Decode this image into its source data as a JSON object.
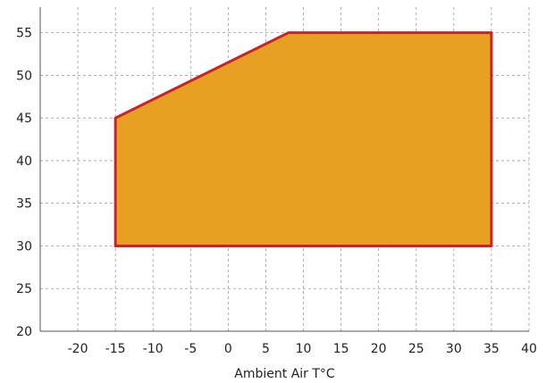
{
  "chart_data": {
    "type": "area",
    "title": "",
    "xlabel": "Ambient Air T°C",
    "ylabel": "",
    "xlim": [
      -25,
      40
    ],
    "ylim": [
      20,
      58
    ],
    "x_ticks": [
      -20,
      -15,
      -10,
      -5,
      0,
      5,
      10,
      15,
      20,
      25,
      30,
      35,
      40
    ],
    "y_ticks": [
      20,
      25,
      30,
      35,
      40,
      45,
      50,
      55
    ],
    "grid": true,
    "legend": "none",
    "fill_color": "#E8A022",
    "edge_color": "#C8232C",
    "series": [
      {
        "values": [
          {
            "x": -15,
            "y": 30
          },
          {
            "x": -15,
            "y": 45
          },
          {
            "x": 8,
            "y": 55
          },
          {
            "x": 35,
            "y": 55
          },
          {
            "x": 35,
            "y": 30
          }
        ]
      }
    ]
  }
}
